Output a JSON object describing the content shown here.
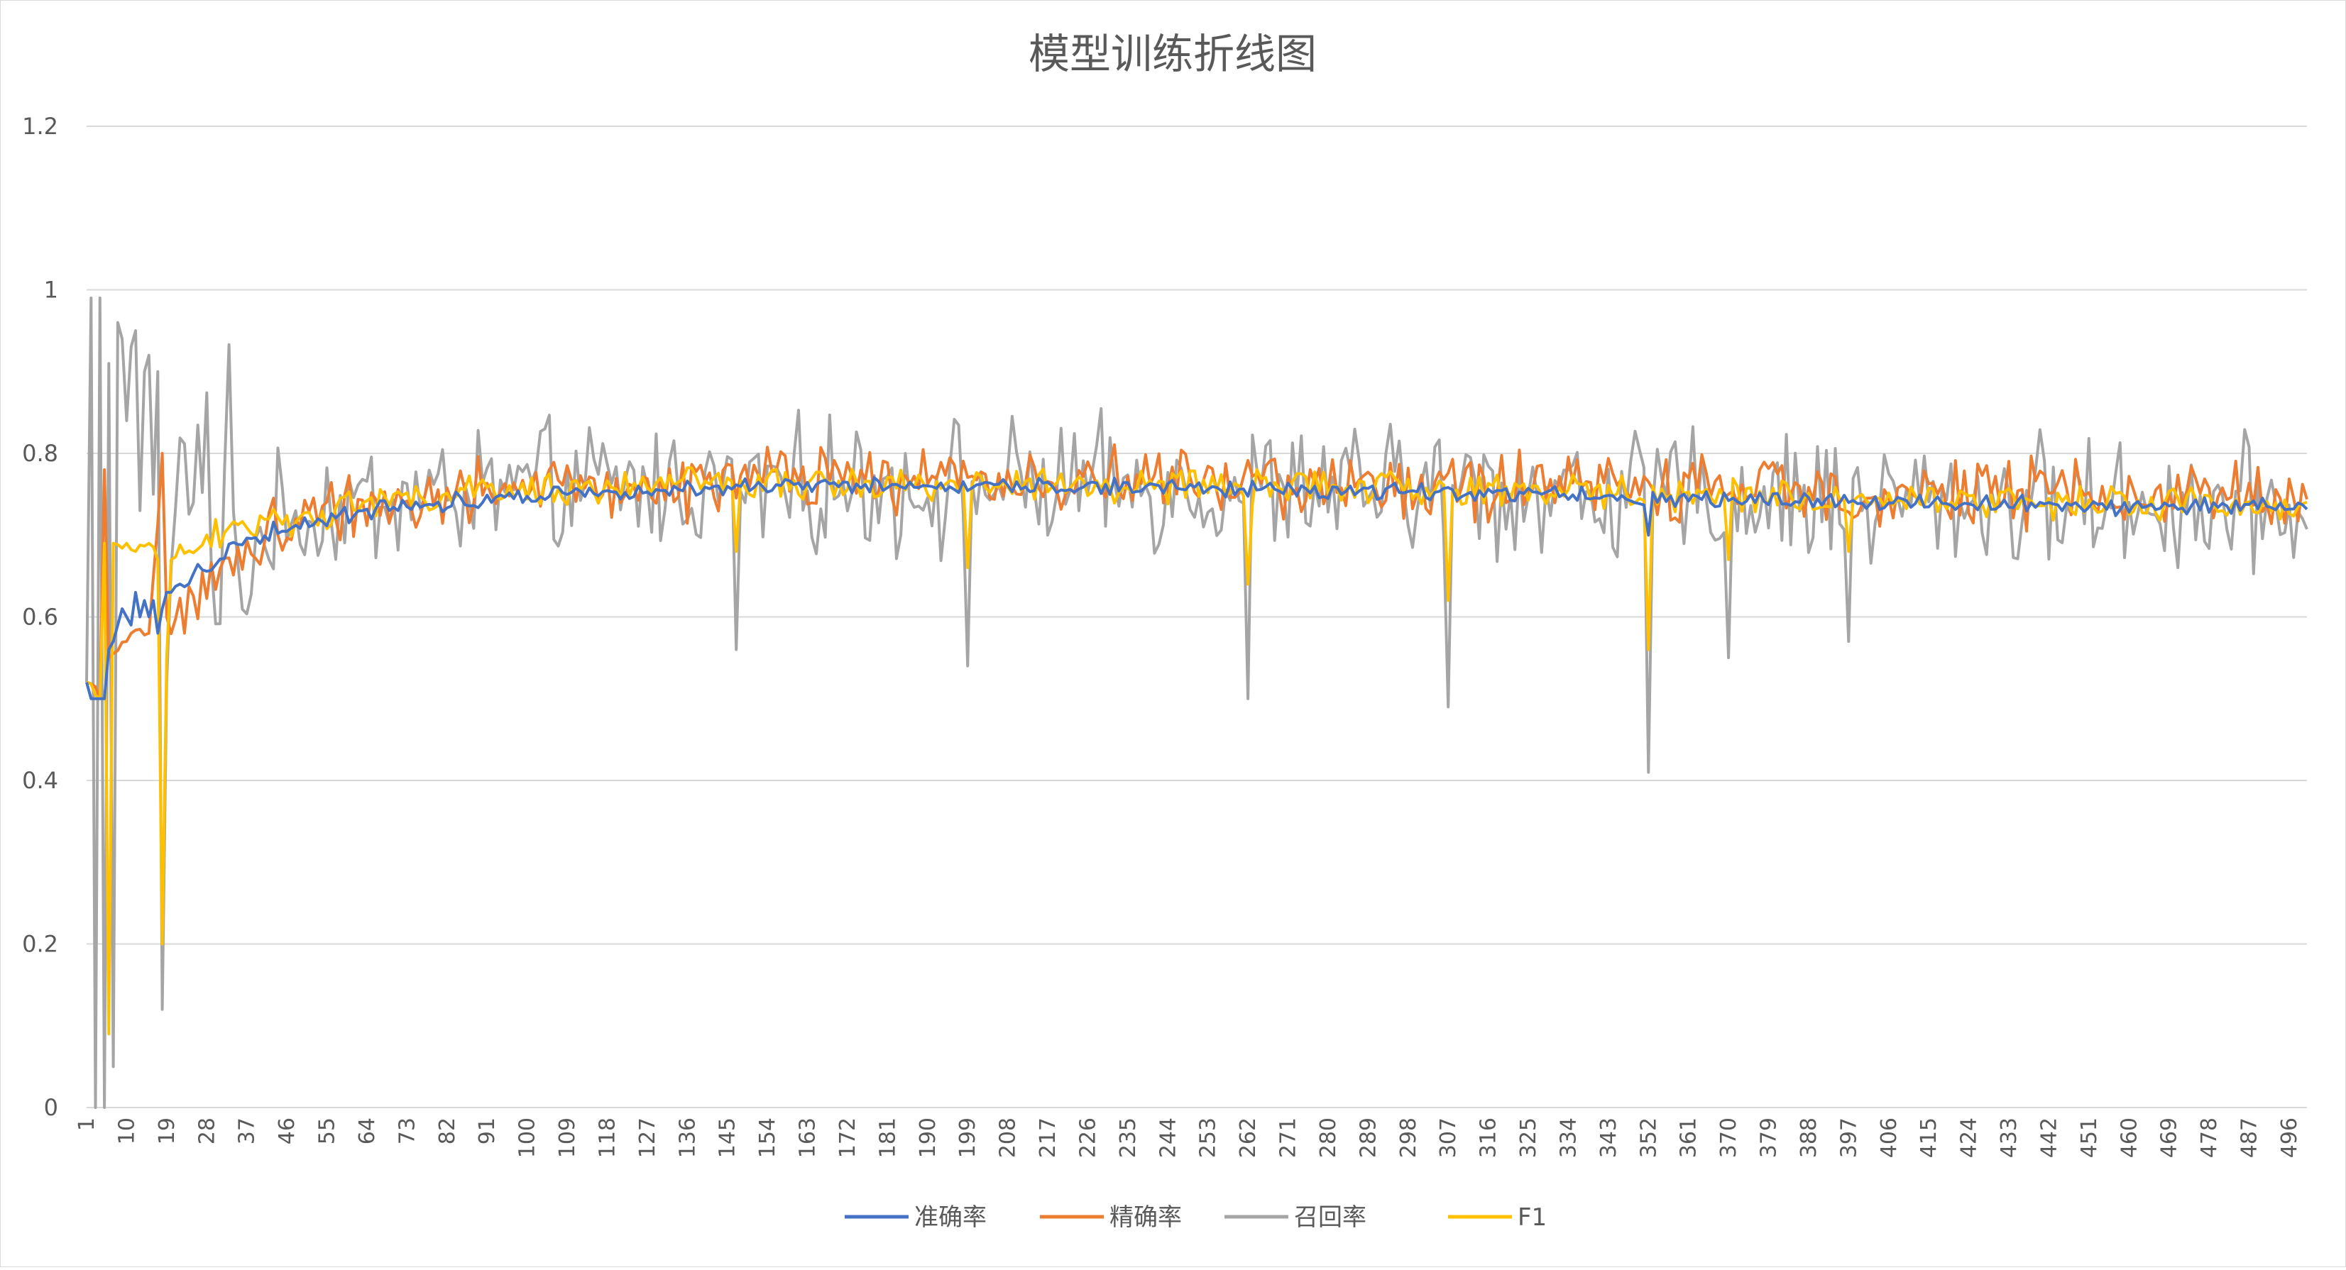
{
  "chart_data": {
    "type": "line",
    "title": "模型训练折线图",
    "xlabel": "",
    "ylabel": "",
    "ylim": [
      0,
      1.2
    ],
    "xlim": [
      1,
      500
    ],
    "y_ticks": [
      0,
      0.2,
      0.4,
      0.6,
      0.8,
      1,
      1.2
    ],
    "x_tick_labels": [
      1,
      10,
      19,
      28,
      37,
      46,
      55,
      64,
      73,
      82,
      91,
      100,
      109,
      118,
      127,
      136,
      145,
      154,
      163,
      172,
      181,
      190,
      199,
      208,
      217,
      226,
      235,
      244,
      253,
      262,
      271,
      280,
      289,
      298,
      307,
      316,
      325,
      334,
      343,
      352,
      361,
      370,
      379,
      388,
      397,
      406,
      415,
      424,
      433,
      442,
      451,
      460,
      469,
      478,
      487,
      496
    ],
    "grid": true,
    "legend_position": "bottom",
    "series_style": [
      {
        "name": "准确率",
        "color": "#4472C4"
      },
      {
        "name": "精确率",
        "color": "#ED7D31"
      },
      {
        "name": "召回率",
        "color": "#A5A5A5"
      },
      {
        "name": "F1",
        "color": "#FFC000"
      }
    ],
    "series": [
      {
        "name": "准确率",
        "keypoints": [
          [
            1,
            0.52
          ],
          [
            2,
            0.5
          ],
          [
            3,
            0.5
          ],
          [
            4,
            0.5
          ],
          [
            5,
            0.5
          ],
          [
            6,
            0.56
          ],
          [
            7,
            0.57
          ],
          [
            8,
            0.59
          ],
          [
            9,
            0.61
          ],
          [
            10,
            0.6
          ],
          [
            11,
            0.59
          ],
          [
            12,
            0.63
          ],
          [
            13,
            0.6
          ],
          [
            14,
            0.62
          ],
          [
            15,
            0.6
          ],
          [
            16,
            0.62
          ],
          [
            17,
            0.58
          ],
          [
            18,
            0.61
          ],
          [
            19,
            0.63
          ],
          [
            20,
            0.63
          ],
          [
            22,
            0.64
          ],
          [
            24,
            0.645
          ],
          [
            26,
            0.655
          ],
          [
            28,
            0.66
          ],
          [
            30,
            0.67
          ],
          [
            35,
            0.69
          ],
          [
            40,
            0.7
          ],
          [
            46,
            0.71
          ],
          [
            55,
            0.72
          ],
          [
            64,
            0.73
          ],
          [
            73,
            0.735
          ],
          [
            82,
            0.74
          ],
          [
            91,
            0.745
          ],
          [
            100,
            0.75
          ],
          [
            118,
            0.755
          ],
          [
            136,
            0.758
          ],
          [
            160,
            0.76
          ],
          [
            190,
            0.76
          ],
          [
            220,
            0.76
          ],
          [
            250,
            0.758
          ],
          [
            280,
            0.755
          ],
          [
            310,
            0.752
          ],
          [
            340,
            0.748
          ],
          [
            352,
            0.745
          ],
          [
            370,
            0.745
          ],
          [
            400,
            0.742
          ],
          [
            430,
            0.738
          ],
          [
            460,
            0.736
          ],
          [
            480,
            0.735
          ],
          [
            500,
            0.735
          ]
        ],
        "noise": 0.008
      },
      {
        "name": "精确率",
        "keypoints": [
          [
            1,
            0.52
          ],
          [
            4,
            0.5
          ],
          [
            5,
            0.78
          ],
          [
            6,
            0.55
          ],
          [
            10,
            0.57
          ],
          [
            15,
            0.58
          ],
          [
            18,
            0.8
          ],
          [
            19,
            0.6
          ],
          [
            22,
            0.61
          ],
          [
            28,
            0.62
          ],
          [
            30,
            0.65
          ],
          [
            37,
            0.68
          ],
          [
            46,
            0.72
          ],
          [
            64,
            0.74
          ],
          [
            82,
            0.75
          ],
          [
            100,
            0.755
          ],
          [
            136,
            0.76
          ],
          [
            145,
            0.77
          ],
          [
            200,
            0.77
          ],
          [
            250,
            0.765
          ],
          [
            300,
            0.76
          ],
          [
            352,
            0.76
          ],
          [
            360,
            0.755
          ],
          [
            400,
            0.755
          ],
          [
            450,
            0.75
          ],
          [
            500,
            0.75
          ]
        ],
        "noise": 0.03
      },
      {
        "name": "召回率",
        "keypoints": [
          [
            1,
            0.52
          ],
          [
            2,
            0.99
          ],
          [
            3,
            0.0
          ],
          [
            4,
            0.99
          ],
          [
            5,
            0.0
          ],
          [
            6,
            0.91
          ],
          [
            7,
            0.05
          ],
          [
            8,
            0.96
          ],
          [
            9,
            0.94
          ],
          [
            10,
            0.84
          ],
          [
            11,
            0.93
          ],
          [
            12,
            0.95
          ],
          [
            13,
            0.73
          ],
          [
            14,
            0.9
          ],
          [
            15,
            0.92
          ],
          [
            16,
            0.75
          ],
          [
            17,
            0.9
          ],
          [
            18,
            0.12
          ],
          [
            19,
            0.52
          ],
          [
            20,
            0.66
          ],
          [
            22,
            0.8
          ],
          [
            25,
            0.77
          ],
          [
            28,
            0.83
          ],
          [
            30,
            0.52
          ],
          [
            33,
            0.89
          ],
          [
            35,
            0.6
          ],
          [
            40,
            0.7
          ],
          [
            46,
            0.72
          ],
          [
            55,
            0.73
          ],
          [
            64,
            0.74
          ],
          [
            82,
            0.75
          ],
          [
            100,
            0.755
          ],
          [
            136,
            0.76
          ],
          [
            200,
            0.76
          ],
          [
            250,
            0.758
          ],
          [
            300,
            0.755
          ],
          [
            350,
            0.75
          ],
          [
            400,
            0.745
          ],
          [
            450,
            0.74
          ],
          [
            500,
            0.735
          ]
        ],
        "noise": 0.06
      },
      {
        "name": "F1",
        "keypoints": [
          [
            1,
            0.52
          ],
          [
            4,
            0.5
          ],
          [
            5,
            0.69
          ],
          [
            6,
            0.09
          ],
          [
            7,
            0.69
          ],
          [
            10,
            0.69
          ],
          [
            12,
            0.68
          ],
          [
            15,
            0.69
          ],
          [
            17,
            0.67
          ],
          [
            18,
            0.2
          ],
          [
            19,
            0.55
          ],
          [
            20,
            0.67
          ],
          [
            25,
            0.68
          ],
          [
            30,
            0.7
          ],
          [
            37,
            0.71
          ],
          [
            46,
            0.72
          ],
          [
            64,
            0.74
          ],
          [
            82,
            0.75
          ],
          [
            100,
            0.755
          ],
          [
            136,
            0.762
          ],
          [
            200,
            0.762
          ],
          [
            250,
            0.76
          ],
          [
            300,
            0.757
          ],
          [
            350,
            0.752
          ],
          [
            400,
            0.745
          ],
          [
            450,
            0.74
          ],
          [
            500,
            0.735
          ]
        ],
        "noise": 0.015
      }
    ],
    "dips": [
      {
        "x": 147,
        "values": {
          "F1": 0.68,
          "召回率": 0.56
        }
      },
      {
        "x": 199,
        "values": {
          "F1": 0.66,
          "召回率": 0.54
        }
      },
      {
        "x": 262,
        "values": {
          "F1": 0.64,
          "召回率": 0.5
        }
      },
      {
        "x": 307,
        "values": {
          "F1": 0.62,
          "召回率": 0.49
        }
      },
      {
        "x": 352,
        "values": {
          "F1": 0.56,
          "召回率": 0.41,
          "准确率": 0.7
        }
      },
      {
        "x": 370,
        "values": {
          "F1": 0.67,
          "召回率": 0.55
        }
      },
      {
        "x": 397,
        "values": {
          "F1": 0.68,
          "召回率": 0.57
        }
      }
    ]
  }
}
